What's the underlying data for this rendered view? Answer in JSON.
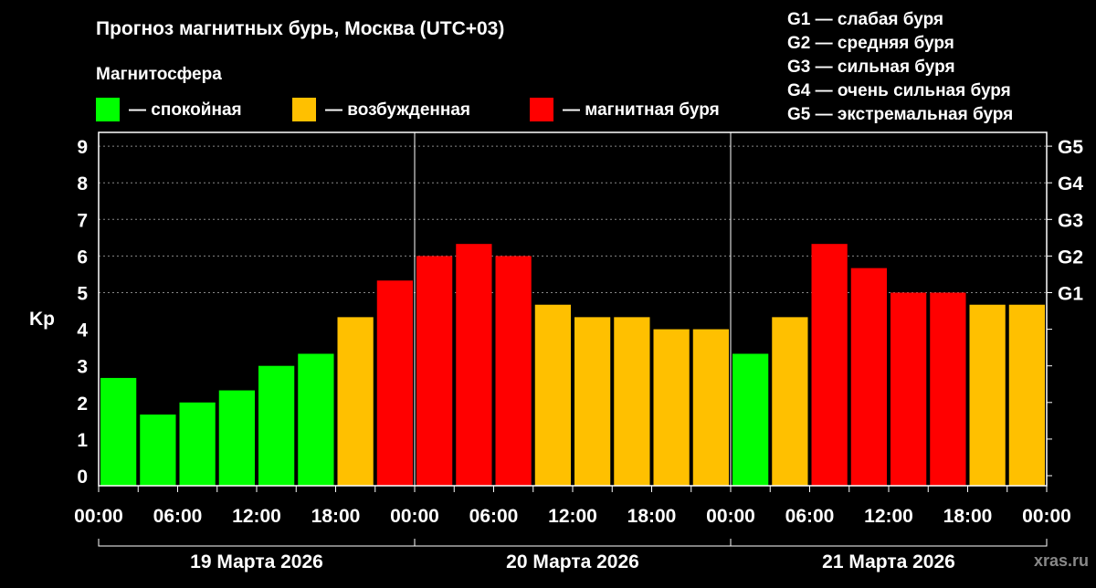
{
  "chart_data": {
    "type": "bar",
    "title": "Прогноз магнитных бурь, Москва (UTC+03)",
    "legend_title": "Магнитосфера",
    "legend": [
      {
        "label": "— спокойная",
        "color": "#00ff00"
      },
      {
        "label": "— возбужденная",
        "color": "#ffc000"
      },
      {
        "label": "— магнитная буря",
        "color": "#ff0000"
      }
    ],
    "g_scale": [
      "G1 — слабая буря",
      "G2 — средняя буря",
      "G3 — сильная буря",
      "G4 — очень сильная буря",
      "G5 — экстремальная буря"
    ],
    "ylabel": "Kp",
    "ylim": [
      0,
      9
    ],
    "yticks": [
      "0",
      "1",
      "2",
      "3",
      "4",
      "5",
      "6",
      "7",
      "8",
      "9"
    ],
    "right_ticks": [
      {
        "value": 5,
        "label": "G1"
      },
      {
        "value": 6,
        "label": "G2"
      },
      {
        "value": 7,
        "label": "G3"
      },
      {
        "value": 8,
        "label": "G4"
      },
      {
        "value": 9,
        "label": "G5"
      }
    ],
    "grid": "dotted at 5–9",
    "xticks": [
      "00:00",
      "06:00",
      "12:00",
      "18:00",
      "00:00",
      "06:00",
      "12:00",
      "18:00",
      "00:00",
      "06:00",
      "12:00",
      "18:00",
      "00:00"
    ],
    "days": [
      "19 Марта 2026",
      "20 Марта 2026",
      "21 Марта 2026"
    ],
    "values": [
      2.67,
      1.67,
      2.0,
      2.33,
      3.0,
      3.33,
      4.33,
      5.33,
      6.0,
      6.33,
      6.0,
      4.67,
      4.33,
      4.33,
      4.0,
      4.0,
      3.33,
      4.33,
      6.33,
      5.67,
      5.0,
      5.0,
      4.67,
      4.67
    ],
    "colors": [
      "#00ff00",
      "#00ff00",
      "#00ff00",
      "#00ff00",
      "#00ff00",
      "#00ff00",
      "#ffc000",
      "#ff0000",
      "#ff0000",
      "#ff0000",
      "#ff0000",
      "#ffc000",
      "#ffc000",
      "#ffc000",
      "#ffc000",
      "#ffc000",
      "#00ff00",
      "#ffc000",
      "#ff0000",
      "#ff0000",
      "#ff0000",
      "#ff0000",
      "#ffc000",
      "#ffc000"
    ]
  },
  "watermark": "xras.ru"
}
